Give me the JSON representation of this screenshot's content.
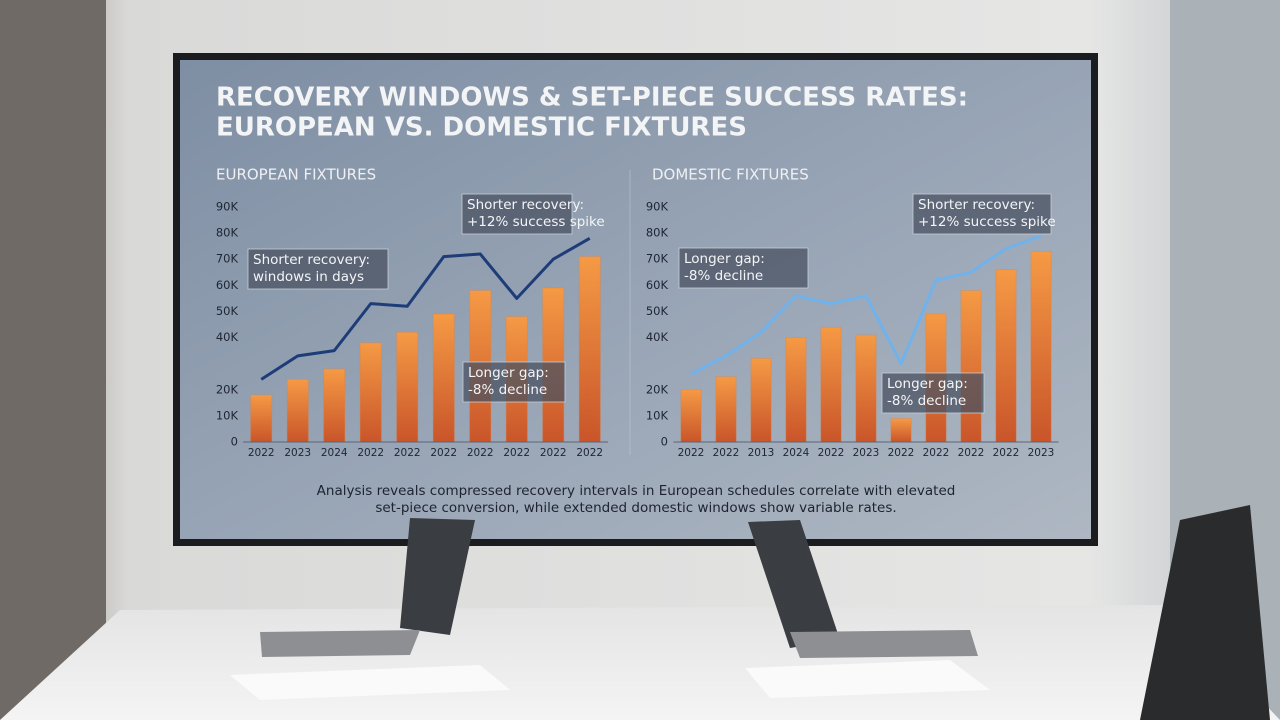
{
  "screen": {
    "title_lines": [
      "RECOVERY WINDOWS & SET-PIECE SUCCESS RATES:",
      "EUROPEAN VS. DOMESTIC FIXTURES"
    ],
    "caption_lines": [
      "Analysis reveals compressed recovery intervals in European schedules correlate with elevated",
      "set-piece conversion, while extended domestic windows show variable rates."
    ]
  },
  "chart_data": [
    {
      "type": "combo",
      "title": "EUROPEAN FIXTURES",
      "categories": [
        "2022",
        "2023",
        "2024",
        "2022",
        "2022",
        "2022",
        "2022",
        "2022",
        "2022",
        "2022"
      ],
      "series": [
        {
          "kind": "bar",
          "color": "#e07a35",
          "values": [
            18000,
            24000,
            28000,
            38000,
            42000,
            49000,
            58000,
            48000,
            59000,
            71000
          ]
        },
        {
          "kind": "line",
          "color": "#1d3c78",
          "values": [
            24000,
            33000,
            35000,
            53000,
            52000,
            71000,
            72000,
            55000,
            70000,
            78000
          ]
        }
      ],
      "ylim": [
        0,
        90000
      ],
      "yticks": [
        {
          "value": 0,
          "label": "0"
        },
        {
          "value": 10000,
          "label": "10K"
        },
        {
          "value": 20000,
          "label": "20K"
        },
        {
          "value": 40000,
          "label": "40K"
        },
        {
          "value": 50000,
          "label": "50K"
        },
        {
          "value": 60000,
          "label": "60K"
        },
        {
          "value": 70000,
          "label": "70K"
        },
        {
          "value": 80000,
          "label": "80K"
        },
        {
          "value": 90000,
          "label": "90K"
        }
      ],
      "annotations": [
        {
          "lines": [
            "Shorter recovery:",
            "+12% success spike"
          ]
        },
        {
          "lines": [
            "Shorter recovery:",
            "windows in days"
          ]
        },
        {
          "lines": [
            "Longer gap:",
            "-8% decline"
          ]
        }
      ]
    },
    {
      "type": "combo",
      "title": "DOMESTIC FIXTURES",
      "categories": [
        "2022",
        "2022",
        "2013",
        "2024",
        "2022",
        "2023",
        "2022",
        "2022",
        "2022",
        "2022",
        "2023"
      ],
      "series": [
        {
          "kind": "bar",
          "color": "#e07a35",
          "values": [
            20000,
            25000,
            32000,
            40000,
            44000,
            41000,
            9000,
            49000,
            58000,
            66000,
            73000
          ]
        },
        {
          "kind": "line",
          "color": "#6fb2ec",
          "values": [
            26000,
            33000,
            42000,
            56000,
            53000,
            56000,
            30000,
            62000,
            65000,
            74000,
            79000
          ]
        }
      ],
      "ylim": [
        0,
        90000
      ],
      "yticks": [
        {
          "value": 0,
          "label": "0"
        },
        {
          "value": 10000,
          "label": "10K"
        },
        {
          "value": 20000,
          "label": "20K"
        },
        {
          "value": 40000,
          "label": "40K"
        },
        {
          "value": 50000,
          "label": "50K"
        },
        {
          "value": 60000,
          "label": "60K"
        },
        {
          "value": 70000,
          "label": "70K"
        },
        {
          "value": 80000,
          "label": "80K"
        },
        {
          "value": 90000,
          "label": "90K"
        }
      ],
      "annotations": [
        {
          "lines": [
            "Shorter recovery:",
            "+12% success spike"
          ]
        },
        {
          "lines": [
            "Longer gap:",
            "-8% decline"
          ]
        },
        {
          "lines": [
            "Longer gap:",
            "-8% decline"
          ]
        }
      ]
    }
  ]
}
